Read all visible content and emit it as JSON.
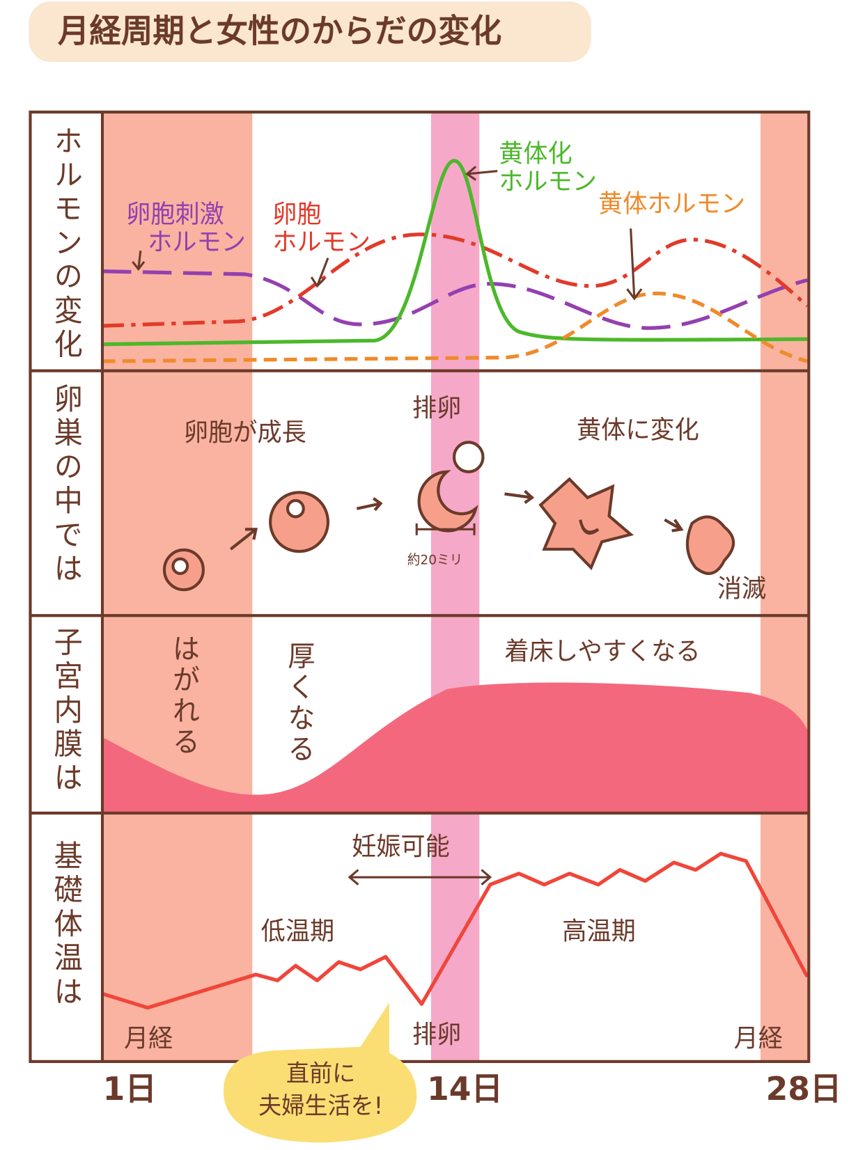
{
  "header": {
    "title": "月経周期と女性のからだの変化"
  },
  "rows": {
    "hormone": {
      "label": "ホルモンの変化",
      "fsh": [
        "卵胞刺激",
        "ホルモン"
      ],
      "estrogen": [
        "卵胞",
        "ホルモン"
      ],
      "lh": [
        "黄体化",
        "ホルモン"
      ],
      "progesterone": [
        "黄体ホルモン"
      ]
    },
    "ovary": {
      "label": "卵巣の中では",
      "growth": "卵胞が成長",
      "ovulation": "排卵",
      "size": "約20ミリ",
      "corpus_luteum": "黄体に変化",
      "disappear": "消滅"
    },
    "endometrium": {
      "label": "子宮内膜は",
      "shedding": "はがれる",
      "thickening": "厚くなる",
      "implantation": "着床しやすくなる"
    },
    "temperature": {
      "label": "基礎体温は",
      "fertile": "妊娠可能",
      "low": "低温期",
      "high": "高温期",
      "menses_start": "月経",
      "ovulation": "排卵",
      "menses_end": "月経"
    }
  },
  "callout": {
    "text": [
      "直前に",
      "夫婦生活を!"
    ]
  },
  "days": [
    "1日",
    "14日",
    "28日"
  ]
}
